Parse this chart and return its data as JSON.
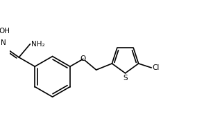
{
  "bg_color": "#ffffff",
  "line_color": "#000000",
  "line_width": 1.2,
  "font_size": 7.5,
  "fig_width": 2.94,
  "fig_height": 1.91,
  "dpi": 100,
  "xlim": [
    0,
    10
  ],
  "ylim": [
    0,
    6.5
  ]
}
